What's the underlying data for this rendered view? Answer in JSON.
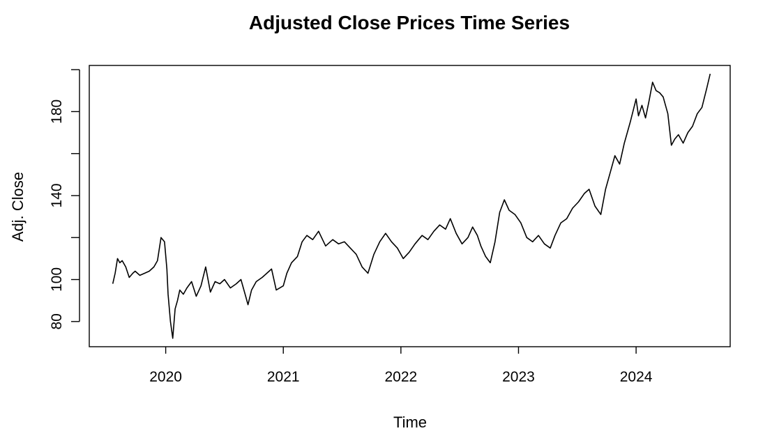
{
  "chart_data": {
    "type": "line",
    "title": "Adjusted Close Prices Time Series",
    "xlabel": "Time",
    "ylabel": "Adj. Close",
    "xlim": [
      2019.35,
      2024.8
    ],
    "ylim": [
      68,
      202
    ],
    "x_ticks": [
      2020,
      2021,
      2022,
      2023,
      2024
    ],
    "x_tick_labels": [
      "2020",
      "2021",
      "2022",
      "2023",
      "2024"
    ],
    "y_ticks": [
      80,
      100,
      140,
      180
    ],
    "y_tick_labels": [
      "80",
      "100",
      "140",
      "180"
    ],
    "y_minor_ticks": [
      120,
      160,
      200
    ],
    "grid": false,
    "legend": false,
    "colors": {
      "line": "#000000",
      "axis": "#000000",
      "background": "#ffffff"
    },
    "series": [
      {
        "x": [
          2019.55,
          2019.57,
          2019.59,
          2019.61,
          2019.63,
          2019.66,
          2019.69,
          2019.72,
          2019.74,
          2019.78,
          2019.82,
          2019.86,
          2019.9,
          2019.93,
          2019.96,
          2019.99,
          2020.01,
          2020.02,
          2020.04,
          2020.06,
          2020.08,
          2020.1,
          2020.12,
          2020.15,
          2020.18,
          2020.22,
          2020.26,
          2020.3,
          2020.34,
          2020.38,
          2020.42,
          2020.46,
          2020.5,
          2020.55,
          2020.6,
          2020.64,
          2020.68,
          2020.7,
          2020.73,
          2020.77,
          2020.82,
          2020.86,
          2020.9,
          2020.94,
          2020.97,
          2021.0,
          2021.03,
          2021.07,
          2021.12,
          2021.16,
          2021.2,
          2021.25,
          2021.3,
          2021.36,
          2021.42,
          2021.47,
          2021.52,
          2021.57,
          2021.62,
          2021.67,
          2021.72,
          2021.77,
          2021.82,
          2021.87,
          2021.92,
          2021.97,
          2022.02,
          2022.07,
          2022.12,
          2022.18,
          2022.23,
          2022.28,
          2022.33,
          2022.38,
          2022.42,
          2022.47,
          2022.52,
          2022.57,
          2022.61,
          2022.65,
          2022.68,
          2022.72,
          2022.76,
          2022.8,
          2022.84,
          2022.88,
          2022.92,
          2022.97,
          2023.02,
          2023.07,
          2023.12,
          2023.17,
          2023.22,
          2023.27,
          2023.31,
          2023.36,
          2023.41,
          2023.46,
          2023.51,
          2023.56,
          2023.6,
          2023.65,
          2023.7,
          2023.74,
          2023.78,
          2023.82,
          2023.86,
          2023.9,
          2023.95,
          2024.0,
          2024.02,
          2024.05,
          2024.08,
          2024.11,
          2024.14,
          2024.17,
          2024.2,
          2024.23,
          2024.27,
          2024.3,
          2024.33,
          2024.36,
          2024.4,
          2024.44,
          2024.48,
          2024.52,
          2024.56,
          2024.6,
          2024.63
        ],
        "y": [
          98,
          103,
          110,
          108,
          109,
          106,
          101,
          103,
          104,
          102,
          103,
          104,
          106,
          109,
          120,
          118,
          105,
          93,
          80,
          72,
          86,
          90,
          95,
          93,
          96,
          99,
          92,
          97,
          106,
          94,
          99,
          98,
          100,
          96,
          98,
          100,
          92,
          88,
          95,
          99,
          101,
          103,
          105,
          95,
          96,
          97,
          103,
          108,
          111,
          118,
          121,
          119,
          123,
          116,
          119,
          117,
          118,
          115,
          112,
          106,
          103,
          112,
          118,
          122,
          118,
          115,
          110,
          113,
          117,
          121,
          119,
          123,
          126,
          124,
          129,
          122,
          117,
          120,
          125,
          121,
          116,
          111,
          108,
          118,
          132,
          138,
          133,
          131,
          127,
          120,
          118,
          121,
          117,
          115,
          121,
          127,
          129,
          134,
          137,
          141,
          143,
          135,
          131,
          143,
          151,
          159,
          155,
          165,
          175,
          186,
          178,
          183,
          177,
          185,
          194,
          190,
          189,
          187,
          179,
          164,
          167,
          169,
          165,
          170,
          173,
          179,
          182,
          191,
          198
        ]
      }
    ]
  }
}
